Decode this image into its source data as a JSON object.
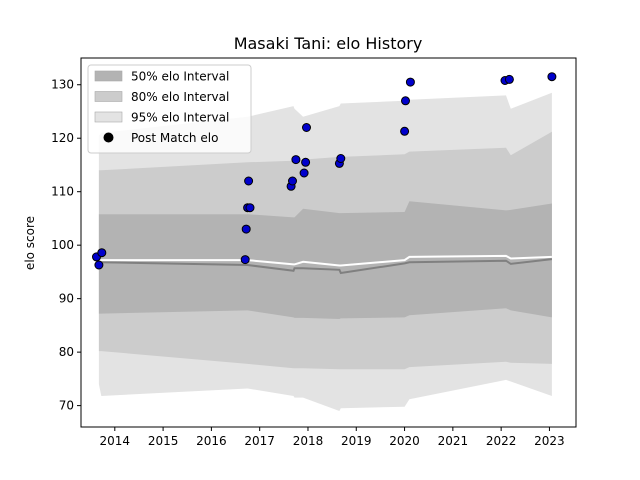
{
  "chart_data": {
    "type": "line",
    "title": "Masaki Tani: elo History",
    "xlabel": "",
    "ylabel": "elo score",
    "xlim": [
      2013.3,
      2023.55
    ],
    "ylim": [
      66,
      135
    ],
    "x_ticks": [
      2014,
      2015,
      2016,
      2017,
      2018,
      2019,
      2020,
      2021,
      2022,
      2023
    ],
    "y_ticks": [
      70,
      80,
      90,
      100,
      110,
      120,
      130
    ],
    "grid": false,
    "legend_position": "top-left",
    "legend": [
      {
        "label": "50% elo Interval",
        "kind": "band",
        "color": "#b3b3b3"
      },
      {
        "label": "80% elo Interval",
        "kind": "band",
        "color": "#cccccc"
      },
      {
        "label": "95% elo Interval",
        "kind": "band",
        "color": "#e3e3e3"
      },
      {
        "label": "Post Match elo",
        "kind": "marker",
        "color": "#000000"
      }
    ],
    "series": [
      {
        "name": "95% elo Interval",
        "kind": "band",
        "color": "#e3e3e3",
        "x": [
          2013.67,
          2013.72,
          2016.75,
          2017.7,
          2017.72,
          2017.9,
          2018.65,
          2018.68,
          2020.0,
          2020.1,
          2022.1,
          2022.2,
          2023.05
        ],
        "lower": [
          74.0,
          71.8,
          73.2,
          71.8,
          71.5,
          71.5,
          69.0,
          69.5,
          69.8,
          71.2,
          74.8,
          74.5,
          71.8
        ],
        "upper": [
          120.5,
          121.0,
          124.0,
          126.0,
          125.5,
          124.0,
          126.0,
          126.5,
          127.0,
          127.2,
          128.0,
          125.5,
          128.5
        ]
      },
      {
        "name": "80% elo Interval",
        "kind": "band",
        "color": "#cccccc",
        "x": [
          2013.67,
          2013.72,
          2016.75,
          2017.7,
          2017.72,
          2017.9,
          2018.65,
          2018.68,
          2020.0,
          2020.1,
          2022.1,
          2022.2,
          2023.05
        ],
        "lower": [
          80.2,
          80.2,
          77.8,
          77.0,
          77.0,
          77.0,
          76.8,
          76.8,
          76.8,
          77.2,
          78.2,
          78.0,
          77.8
        ],
        "upper": [
          114.0,
          114.0,
          115.5,
          115.8,
          115.8,
          116.0,
          116.5,
          116.5,
          117.0,
          117.5,
          118.2,
          116.8,
          121.2
        ]
      },
      {
        "name": "50% elo Interval",
        "kind": "band",
        "color": "#b3b3b3",
        "x": [
          2013.67,
          2013.72,
          2016.75,
          2017.7,
          2017.72,
          2017.9,
          2018.65,
          2018.68,
          2020.0,
          2020.1,
          2022.1,
          2022.2,
          2023.05
        ],
        "lower": [
          87.2,
          87.2,
          87.8,
          86.5,
          86.4,
          86.4,
          86.2,
          86.3,
          86.5,
          86.9,
          88.2,
          87.8,
          86.5
        ],
        "upper": [
          105.8,
          105.8,
          105.8,
          105.2,
          105.2,
          106.8,
          106.0,
          106.0,
          106.2,
          108.2,
          106.5,
          106.6,
          107.8
        ]
      },
      {
        "name": "Mean elo",
        "kind": "line",
        "color": "#808080",
        "x": [
          2013.67,
          2013.72,
          2016.75,
          2017.7,
          2017.72,
          2017.9,
          2018.65,
          2018.68,
          2020.0,
          2020.1,
          2022.1,
          2022.2,
          2023.05
        ],
        "values": [
          96.8,
          96.8,
          96.3,
          95.2,
          95.7,
          95.7,
          95.4,
          94.8,
          96.6,
          96.8,
          97.1,
          96.5,
          97.4
        ]
      },
      {
        "name": "Current elo",
        "kind": "line",
        "color": "#ffffff",
        "x": [
          2013.67,
          2013.72,
          2016.75,
          2017.7,
          2017.72,
          2017.9,
          2018.65,
          2018.68,
          2020.0,
          2020.1,
          2022.1,
          2022.2,
          2023.05
        ],
        "values": [
          97.0,
          97.2,
          97.2,
          96.4,
          96.4,
          96.9,
          96.2,
          96.2,
          97.2,
          97.8,
          98.0,
          97.5,
          97.8
        ]
      },
      {
        "name": "Post Match elo",
        "kind": "scatter",
        "color": "#0000cc",
        "edge": "#000000",
        "x": [
          2013.62,
          2013.67,
          2013.73,
          2016.7,
          2016.72,
          2016.75,
          2016.77,
          2016.8,
          2017.65,
          2017.68,
          2017.75,
          2017.92,
          2017.95,
          2017.97,
          2018.65,
          2018.68,
          2020.0,
          2020.02,
          2020.12,
          2022.08,
          2022.17,
          2023.05
        ],
        "values": [
          97.8,
          96.3,
          98.6,
          97.3,
          103.0,
          107.0,
          112.0,
          107.0,
          111.0,
          112.0,
          116.0,
          113.5,
          115.5,
          122.0,
          115.3,
          116.2,
          121.3,
          127.0,
          130.5,
          130.8,
          131.0,
          131.5
        ]
      }
    ]
  }
}
